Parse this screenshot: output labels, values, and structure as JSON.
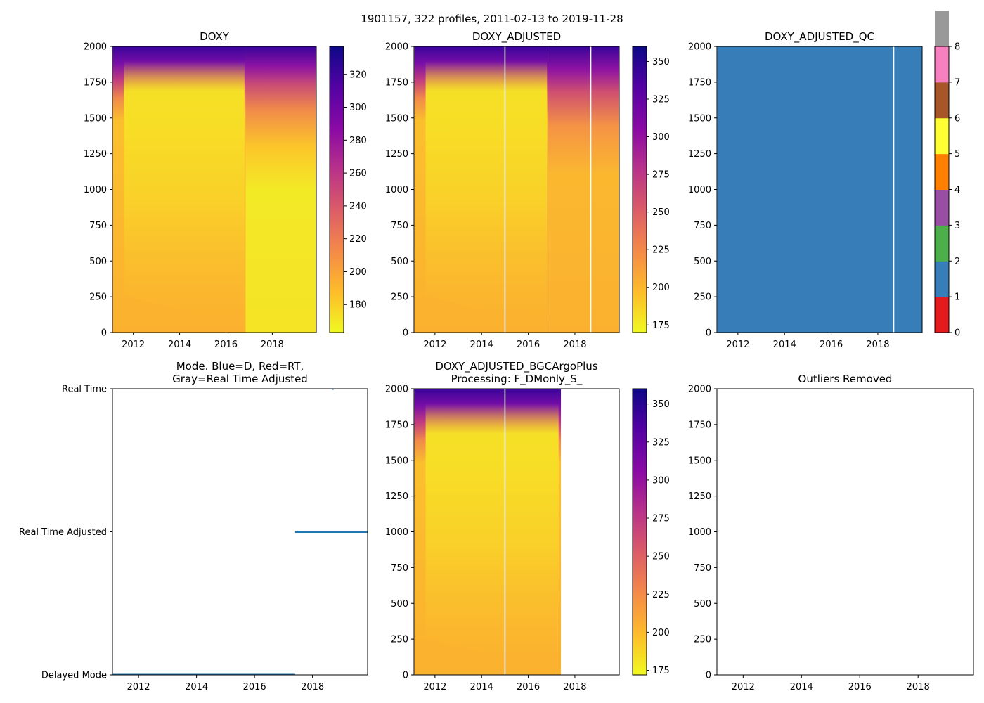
{
  "figure": {
    "suptitle": "1901157, 322 profiles, 2011-02-13 to 2019-11-28"
  },
  "colors": {
    "plasma": [
      "#0d0887",
      "#5302a3",
      "#8b0aa5",
      "#b83289",
      "#db5c68",
      "#f48849",
      "#febd2a",
      "#f0f921"
    ],
    "qc_palette": [
      "#e41a1c",
      "#377eb8",
      "#4daf4a",
      "#984ea3",
      "#ff7f00",
      "#ffff33",
      "#a65628",
      "#f781bf",
      "#999999"
    ],
    "mode_marker": "#1f77b4"
  },
  "chart_data": [
    {
      "id": "doxy",
      "type": "heatmap",
      "title": "DOXY",
      "xlabel": "",
      "ylabel": "",
      "xlim": [
        2011.1,
        2019.9
      ],
      "ylim": [
        2000,
        0
      ],
      "x_ticks": [
        2012,
        2014,
        2016,
        2018
      ],
      "y_ticks": [
        0,
        250,
        500,
        750,
        1000,
        1250,
        1500,
        1750,
        2000
      ],
      "colorbar": {
        "cmap": "plasma_r",
        "range": [
          163,
          337
        ],
        "ticks": [
          180,
          200,
          220,
          240,
          260,
          280,
          300,
          320
        ]
      },
      "profile_range": [
        2011.12,
        2019.91
      ],
      "gaps": []
    },
    {
      "id": "doxy-adjusted",
      "type": "heatmap",
      "title": "DOXY_ADJUSTED",
      "xlabel": "",
      "ylabel": "",
      "xlim": [
        2011.1,
        2019.9
      ],
      "ylim": [
        2000,
        0
      ],
      "x_ticks": [
        2012,
        2014,
        2016,
        2018
      ],
      "y_ticks": [
        0,
        250,
        500,
        750,
        1000,
        1250,
        1500,
        1750,
        2000
      ],
      "colorbar": {
        "cmap": "plasma_r",
        "range": [
          170,
          360
        ],
        "ticks": [
          175,
          200,
          225,
          250,
          275,
          300,
          325,
          350
        ]
      },
      "profile_range": [
        2011.12,
        2019.91
      ],
      "gaps": [
        2015.0,
        2018.68
      ]
    },
    {
      "id": "doxy-adjusted-qc",
      "type": "heatmap",
      "title": "DOXY_ADJUSTED_QC",
      "xlabel": "",
      "ylabel": "",
      "xlim": [
        2011.1,
        2019.9
      ],
      "ylim": [
        2000,
        0
      ],
      "x_ticks": [
        2012,
        2014,
        2016,
        2018
      ],
      "y_ticks": [
        0,
        250,
        500,
        750,
        1000,
        1250,
        1500,
        1750,
        2000
      ],
      "colorbar": {
        "cmap": "qc",
        "range": [
          0,
          8
        ],
        "ticks": [
          0,
          1,
          2,
          3,
          4,
          5,
          6,
          7,
          8
        ]
      },
      "qc_value": 1,
      "profile_range": [
        2011.12,
        2019.91
      ],
      "gaps": [
        2018.68
      ]
    },
    {
      "id": "mode",
      "type": "scatter",
      "title": "Mode. Blue=D, Red=RT,",
      "title2": "Gray=Real Time Adjusted",
      "xlabel": "",
      "ylabel": "",
      "xlim": [
        2011.1,
        2019.9
      ],
      "ylim": [
        0,
        2
      ],
      "x_ticks": [
        2012,
        2014,
        2016,
        2018
      ],
      "y_ticks": [
        {
          "value": 2,
          "label": "Delayed Mode"
        },
        {
          "value": 1,
          "label": "Real Time Adjusted"
        },
        {
          "value": 0,
          "label": "Real Time"
        }
      ],
      "series": [
        {
          "name": "Delayed Mode",
          "value": 2,
          "x_range": [
            2011.12,
            2017.4
          ]
        },
        {
          "name": "Real Time Adjusted",
          "value": 1,
          "x_range": [
            2017.4,
            2019.91
          ]
        },
        {
          "name": "Real Time",
          "value": 0,
          "x": [
            2018.7
          ]
        }
      ]
    },
    {
      "id": "doxy-adjusted-bgc",
      "type": "heatmap",
      "title": "DOXY_ADJUSTED_BGCArgoPlus",
      "title2": "Processing: F_DMonly_S_",
      "xlabel": "",
      "ylabel": "",
      "xlim": [
        2011.1,
        2019.9
      ],
      "ylim": [
        2000,
        0
      ],
      "x_ticks": [
        2012,
        2014,
        2016,
        2018
      ],
      "y_ticks": [
        0,
        250,
        500,
        750,
        1000,
        1250,
        1500,
        1750,
        2000
      ],
      "colorbar": {
        "cmap": "plasma_r",
        "range": [
          172,
          360
        ],
        "ticks": [
          175,
          200,
          225,
          250,
          275,
          300,
          325,
          350
        ]
      },
      "profile_range": [
        2011.12,
        2017.4
      ],
      "gaps": [
        2015.0
      ]
    },
    {
      "id": "outliers",
      "type": "scatter",
      "title": "Outliers Removed",
      "xlabel": "",
      "ylabel": "",
      "xlim": [
        2011.1,
        2019.9
      ],
      "ylim": [
        2000,
        0
      ],
      "x_ticks": [
        2012,
        2014,
        2016,
        2018
      ],
      "y_ticks": [
        0,
        250,
        500,
        750,
        1000,
        1250,
        1500,
        1750,
        2000
      ],
      "series": []
    }
  ]
}
